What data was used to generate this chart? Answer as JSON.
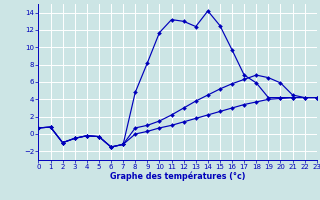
{
  "xlabel": "Graphe des températures (°c)",
  "bg_color": "#cce5e5",
  "line_color": "#0000bb",
  "grid_color": "#ffffff",
  "xlim": [
    0,
    23
  ],
  "ylim": [
    -3,
    15
  ],
  "yticks": [
    -2,
    0,
    2,
    4,
    6,
    8,
    10,
    12,
    14
  ],
  "xticks": [
    0,
    1,
    2,
    3,
    4,
    5,
    6,
    7,
    8,
    9,
    10,
    11,
    12,
    13,
    14,
    15,
    16,
    17,
    18,
    19,
    20,
    21,
    22,
    23
  ],
  "curve1_x": [
    0,
    1,
    2,
    3,
    4,
    5,
    6,
    7,
    8,
    9,
    10,
    11,
    12,
    13,
    14,
    15,
    16,
    17,
    18,
    19,
    20,
    21
  ],
  "curve1_y": [
    0.7,
    0.8,
    -1.0,
    -0.5,
    -0.2,
    -0.3,
    -1.5,
    -1.2,
    4.8,
    8.2,
    11.7,
    13.2,
    13.0,
    12.4,
    14.2,
    12.5,
    9.7,
    6.8,
    5.9,
    4.2,
    4.2,
    4.2
  ],
  "curve2_x": [
    0,
    1,
    2,
    3,
    4,
    5,
    6,
    7,
    8,
    9,
    10,
    11,
    12,
    13,
    14,
    15,
    16,
    17,
    18,
    19,
    20,
    21,
    22,
    23
  ],
  "curve2_y": [
    0.7,
    0.8,
    -1.0,
    -0.5,
    -0.2,
    -0.3,
    -1.5,
    -1.2,
    0.7,
    1.0,
    1.5,
    2.2,
    3.0,
    3.8,
    4.5,
    5.2,
    5.8,
    6.3,
    6.8,
    6.5,
    5.9,
    4.5,
    4.2,
    4.2
  ],
  "curve3_x": [
    0,
    1,
    2,
    3,
    4,
    5,
    6,
    7,
    8,
    9,
    10,
    11,
    12,
    13,
    14,
    15,
    16,
    17,
    18,
    19,
    20,
    21,
    22,
    23
  ],
  "curve3_y": [
    0.7,
    0.8,
    -1.0,
    -0.5,
    -0.2,
    -0.3,
    -1.5,
    -1.2,
    0.0,
    0.3,
    0.7,
    1.0,
    1.4,
    1.8,
    2.2,
    2.6,
    3.0,
    3.4,
    3.7,
    4.0,
    4.1,
    4.2,
    4.2,
    4.2
  ],
  "markersize": 2.0,
  "linewidth": 0.85
}
